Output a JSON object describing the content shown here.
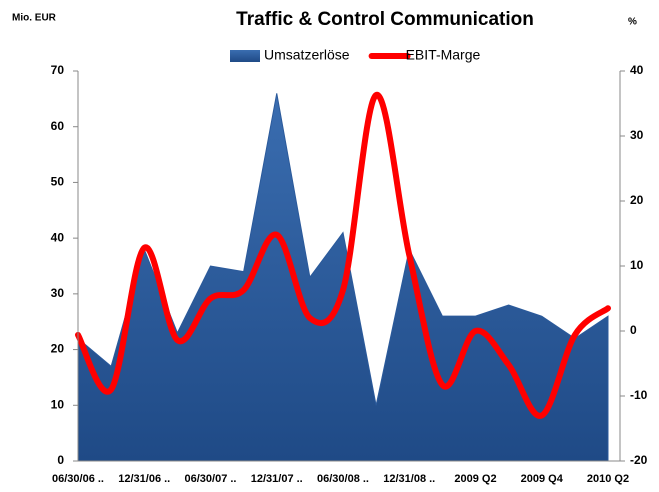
{
  "chart_data": {
    "type": "area-line",
    "title": "Traffic & Control Communication",
    "y_label": "Mio. EUR",
    "y2_label": "%",
    "categories": [
      "06/30/06 ..",
      null,
      "12/31/06 ..",
      null,
      "06/30/07 ..",
      null,
      "12/31/07 ..",
      null,
      "06/30/08 ..",
      null,
      "12/31/08 ..",
      null,
      "2009 Q2",
      null,
      "2009 Q4",
      null,
      "2010 Q2"
    ],
    "series": [
      {
        "name": "Umsatzerlöse",
        "color": "#2b5a9b",
        "type": "area",
        "values": [
          22,
          17,
          38,
          23,
          35,
          34,
          66,
          33,
          41,
          10,
          38,
          26,
          26,
          28,
          26,
          22,
          26
        ]
      },
      {
        "name": "EBIT-Marge",
        "color": "#ff0000",
        "type": "line",
        "axis": "y2",
        "values": [
          -0.6,
          -9,
          12.8,
          -1.4,
          5,
          6.3,
          14.8,
          2,
          6.3,
          36.3,
          11.7,
          -8.3,
          0,
          -5.2,
          -13,
          -0.6,
          3.5
        ]
      }
    ],
    "ylim": [
      0,
      70
    ],
    "yticks": [
      0,
      10,
      20,
      30,
      40,
      50,
      60,
      70
    ],
    "y2lim": [
      -20,
      40
    ],
    "y2ticks": [
      -20,
      -10,
      0,
      10,
      20,
      30,
      40
    ],
    "legend": "top"
  }
}
